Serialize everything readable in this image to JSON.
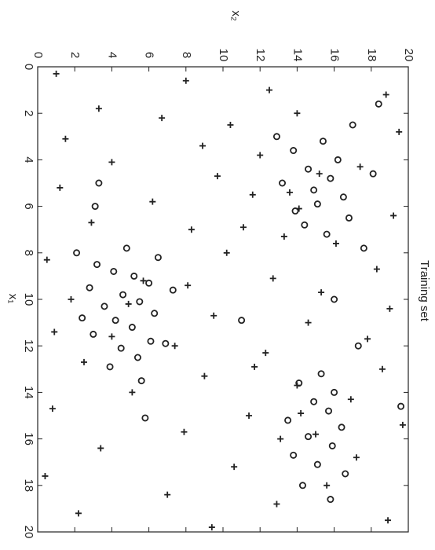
{
  "chart_data": {
    "type": "scatter",
    "title": "Training set",
    "x_label": "x₁",
    "y_label": "x₂",
    "xlim": [
      0,
      20
    ],
    "ylim": [
      0,
      20
    ],
    "xticks": [
      0,
      2,
      4,
      6,
      8,
      10,
      12,
      14,
      16,
      18,
      20
    ],
    "yticks": [
      0,
      2,
      4,
      6,
      8,
      10,
      12,
      14,
      16,
      18,
      20
    ],
    "rotated": true,
    "series": [
      {
        "marker": "plus",
        "color": "#222222",
        "x": [
          0.3,
          0.6,
          1.0,
          1.2,
          1.8,
          2.2,
          2.5,
          2.8,
          3.1,
          3.4,
          3.8,
          4.1,
          4.3,
          4.7,
          5.2,
          5.5,
          5.8,
          6.1,
          6.4,
          6.7,
          7.0,
          7.3,
          7.6,
          8.0,
          8.3,
          8.7,
          9.1,
          9.4,
          9.7,
          10.0,
          10.4,
          10.7,
          11.0,
          11.4,
          11.7,
          12.0,
          12.3,
          12.7,
          13.0,
          13.3,
          13.7,
          14.0,
          14.3,
          14.7,
          15.0,
          15.4,
          15.7,
          16.0,
          16.4,
          16.8,
          17.2,
          17.6,
          18.0,
          18.4,
          18.8,
          19.2,
          19.5,
          19.8,
          4.6,
          5.4,
          14.9,
          15.8,
          10.2,
          9.2,
          11.6,
          2.0,
          6.9,
          12.9
        ],
        "values": [
          1.0,
          8.0,
          12.5,
          18.8,
          3.3,
          6.7,
          10.4,
          19.5,
          1.5,
          8.9,
          12.0,
          4.0,
          17.4,
          9.7,
          1.2,
          11.6,
          6.2,
          14.1,
          19.2,
          2.9,
          8.3,
          13.3,
          16.1,
          10.2,
          0.5,
          18.3,
          12.7,
          8.1,
          15.3,
          1.8,
          19.0,
          9.5,
          14.6,
          0.9,
          17.8,
          7.4,
          12.3,
          2.5,
          18.6,
          9.0,
          14.0,
          5.1,
          16.9,
          0.8,
          11.4,
          19.7,
          7.9,
          13.1,
          3.4,
          17.2,
          10.6,
          0.4,
          15.6,
          7.0,
          12.9,
          2.2,
          18.9,
          9.4,
          15.2,
          13.6,
          14.2,
          15.0,
          4.9,
          5.7,
          4.0,
          14.0,
          11.1,
          11.7
        ]
      },
      {
        "marker": "circle",
        "color": "#222222",
        "x": [
          8.5,
          8.8,
          9.0,
          9.3,
          9.5,
          9.8,
          10.1,
          10.3,
          10.6,
          10.9,
          11.2,
          11.5,
          11.8,
          12.1,
          12.5,
          12.9,
          8.2,
          9.6,
          10.8,
          11.9,
          7.8,
          8.0,
          6.0,
          5.0,
          13.5,
          15.1,
          3.2,
          3.6,
          4.0,
          4.4,
          4.8,
          5.0,
          5.3,
          5.6,
          5.9,
          6.2,
          6.5,
          6.8,
          2.5,
          3.0,
          7.2,
          1.6,
          4.6,
          7.8,
          13.2,
          13.6,
          14.0,
          14.4,
          14.8,
          15.2,
          15.5,
          15.9,
          16.3,
          16.7,
          17.1,
          17.5,
          18.0,
          18.6,
          14.6,
          12.0,
          10.0,
          10.9
        ],
        "values": [
          3.2,
          4.1,
          5.2,
          6.0,
          2.8,
          4.6,
          5.5,
          3.6,
          6.3,
          4.2,
          5.1,
          3.0,
          6.1,
          4.5,
          5.4,
          3.9,
          6.5,
          7.3,
          2.4,
          6.9,
          4.8,
          2.1,
          3.1,
          3.3,
          5.6,
          5.8,
          15.4,
          13.8,
          16.2,
          14.6,
          15.8,
          13.2,
          14.9,
          16.5,
          15.1,
          13.9,
          16.8,
          14.4,
          17.0,
          12.9,
          15.6,
          18.4,
          18.1,
          17.6,
          15.3,
          14.1,
          16.0,
          14.9,
          15.7,
          13.5,
          16.4,
          14.6,
          15.9,
          13.8,
          15.1,
          16.6,
          14.3,
          15.8,
          19.6,
          17.3,
          16.0,
          11.0
        ]
      }
    ]
  }
}
